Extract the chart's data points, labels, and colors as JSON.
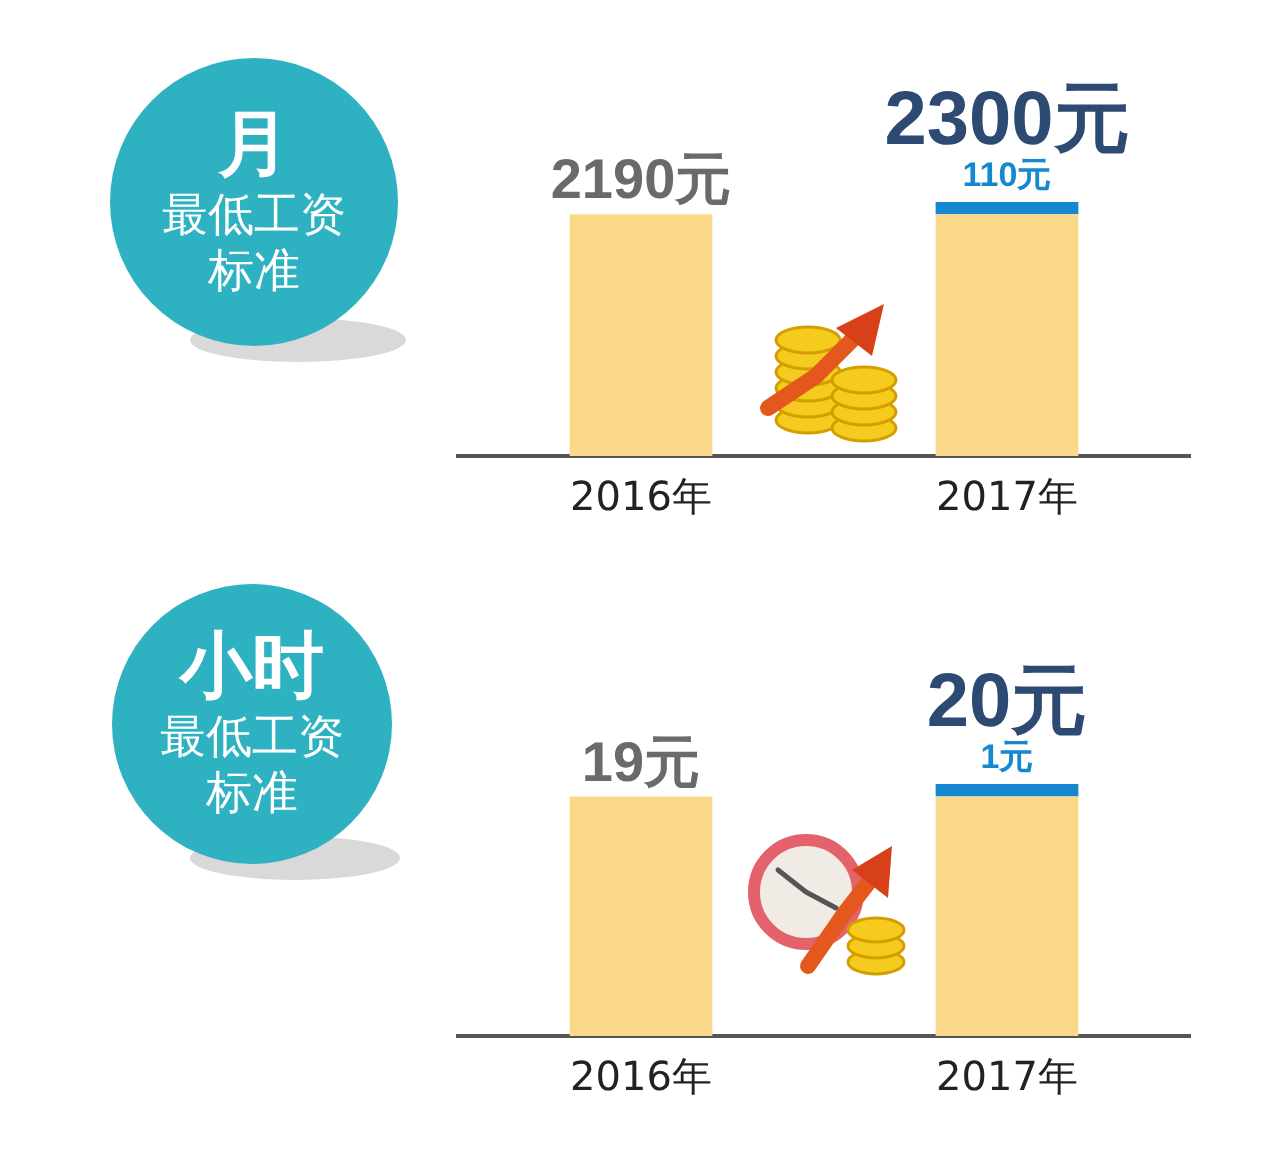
{
  "chart_data": [
    {
      "type": "bar",
      "title": "月",
      "subtitle": "最低工资标准",
      "categories": [
        "2016年",
        "2017年"
      ],
      "stacked": true,
      "series": [
        {
          "color": "#fbd98b",
          "values": [
            2190,
            2190
          ],
          "value_labels": [
            "2190元",
            null
          ]
        },
        {
          "color": "#1688cf",
          "values": [
            null,
            110
          ],
          "value_labels": [
            null,
            "110元"
          ]
        }
      ],
      "totals": [
        null,
        "2300元"
      ],
      "tick_labels": "x",
      "grid": false,
      "legend": false
    },
    {
      "type": "bar",
      "title": "小时",
      "subtitle": "最低工资标准",
      "categories": [
        "2016年",
        "2017年"
      ],
      "stacked": true,
      "series": [
        {
          "color": "#fbd98b",
          "values": [
            19,
            19
          ],
          "value_labels": [
            "19元",
            null
          ]
        },
        {
          "color": "#1688cf",
          "values": [
            null,
            1
          ],
          "value_labels": [
            null,
            "1元"
          ]
        }
      ],
      "totals": [
        null,
        "20元"
      ],
      "tick_labels": "x",
      "grid": false,
      "legend": false
    }
  ]
}
